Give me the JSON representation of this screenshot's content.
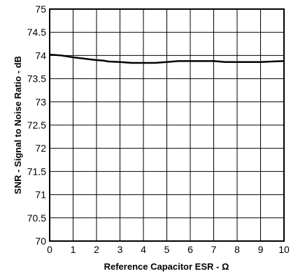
{
  "chart_data": {
    "type": "line",
    "title": "",
    "xlabel": "Reference Capacitor ESR - Ω",
    "ylabel": "SNR - Signal to Noise Ratio - dB",
    "xlim": [
      0,
      10
    ],
    "ylim": [
      70,
      75
    ],
    "x_ticks": [
      0,
      1,
      2,
      3,
      4,
      5,
      6,
      7,
      8,
      9,
      10
    ],
    "y_ticks": [
      70,
      70.5,
      71,
      71.5,
      72,
      72.5,
      73,
      73.5,
      74,
      74.5,
      75
    ],
    "grid": true,
    "series": [
      {
        "x": [
          0,
          0.5,
          1,
          1.5,
          2,
          2.3,
          2.5,
          3,
          3.5,
          4,
          4.5,
          5,
          5.5,
          6,
          6.5,
          7,
          7.5,
          8,
          8.5,
          9,
          9.5,
          10
        ],
        "y": [
          74.02,
          74.0,
          73.96,
          73.93,
          73.9,
          73.89,
          73.87,
          73.86,
          73.84,
          73.84,
          73.84,
          73.86,
          73.88,
          73.88,
          73.88,
          73.88,
          73.86,
          73.86,
          73.86,
          73.86,
          73.87,
          73.88
        ]
      }
    ]
  }
}
